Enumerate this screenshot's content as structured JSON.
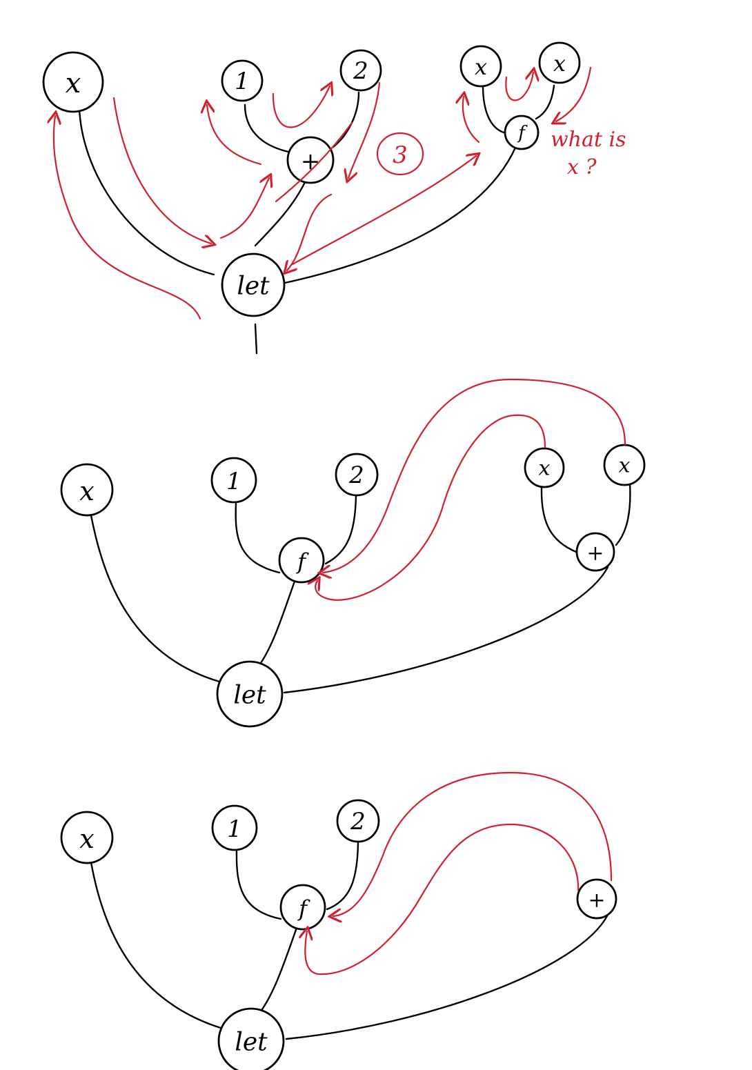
{
  "diagrams": [
    {
      "nodes": [
        "x",
        "1",
        "2",
        "+",
        "x",
        "x",
        "f",
        "let"
      ],
      "annotations": {
        "result": "3",
        "question_line1": "what is",
        "question_line2": "x ?"
      }
    },
    {
      "nodes": [
        "x",
        "1",
        "2",
        "f",
        "x",
        "x",
        "+",
        "let"
      ]
    },
    {
      "nodes": [
        "x",
        "1",
        "2",
        "f",
        "+",
        "let"
      ]
    }
  ],
  "colors": {
    "ink": "#000000",
    "annotation": "#d11f2e"
  }
}
